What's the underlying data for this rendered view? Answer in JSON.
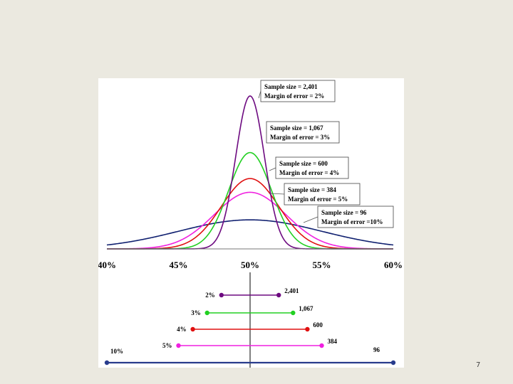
{
  "slide": {
    "page_number": "7"
  },
  "chart_data": [
    {
      "type": "line",
      "title": "",
      "xlabel": "",
      "ylabel": "",
      "xlim": [
        40,
        60
      ],
      "x_ticks": [
        "40%",
        "45%",
        "50%",
        "55%",
        "60%"
      ],
      "center": 50,
      "series": [
        {
          "sample_size": "2,401",
          "margin": 2,
          "peak": 1.0,
          "color": "#6d0a80",
          "label_line1": "Sample size = 2,401",
          "label_line2": "Margin of error = 2%"
        },
        {
          "sample_size": "1,067",
          "margin": 3,
          "peak": 0.63,
          "color": "#22d022",
          "label_line1": "Sample size = 1,067",
          "label_line2": "Margin of error = 3%"
        },
        {
          "sample_size": "600",
          "margin": 4,
          "peak": 0.46,
          "color": "#e01010",
          "label_line1": "Sample size = 600",
          "label_line2": "Margin of error = 4%"
        },
        {
          "sample_size": "384",
          "margin": 5,
          "peak": 0.37,
          "color": "#f020e0",
          "label_line1": "Sample size = 384",
          "label_line2": "Margin of error = 5%"
        },
        {
          "sample_size": "96",
          "margin": 10,
          "peak": 0.19,
          "color": "#102070",
          "label_line1": "Sample size = 96",
          "label_line2": "Margin of error =10%"
        }
      ]
    },
    {
      "type": "interval",
      "center": 50,
      "intervals": [
        {
          "margin_label": "2%",
          "size_label": "2,401",
          "low": 48,
          "high": 52,
          "color": "#6d0a80"
        },
        {
          "margin_label": "3%",
          "size_label": "1,067",
          "low": 47,
          "high": 53,
          "color": "#22d022"
        },
        {
          "margin_label": "4%",
          "size_label": "600",
          "low": 46,
          "high": 54,
          "color": "#e01010"
        },
        {
          "margin_label": "5%",
          "size_label": "384",
          "low": 45,
          "high": 55,
          "color": "#f020e0"
        },
        {
          "margin_label": "10%",
          "size_label": "96",
          "low": 40,
          "high": 60,
          "color": "#283c8c"
        }
      ]
    }
  ]
}
